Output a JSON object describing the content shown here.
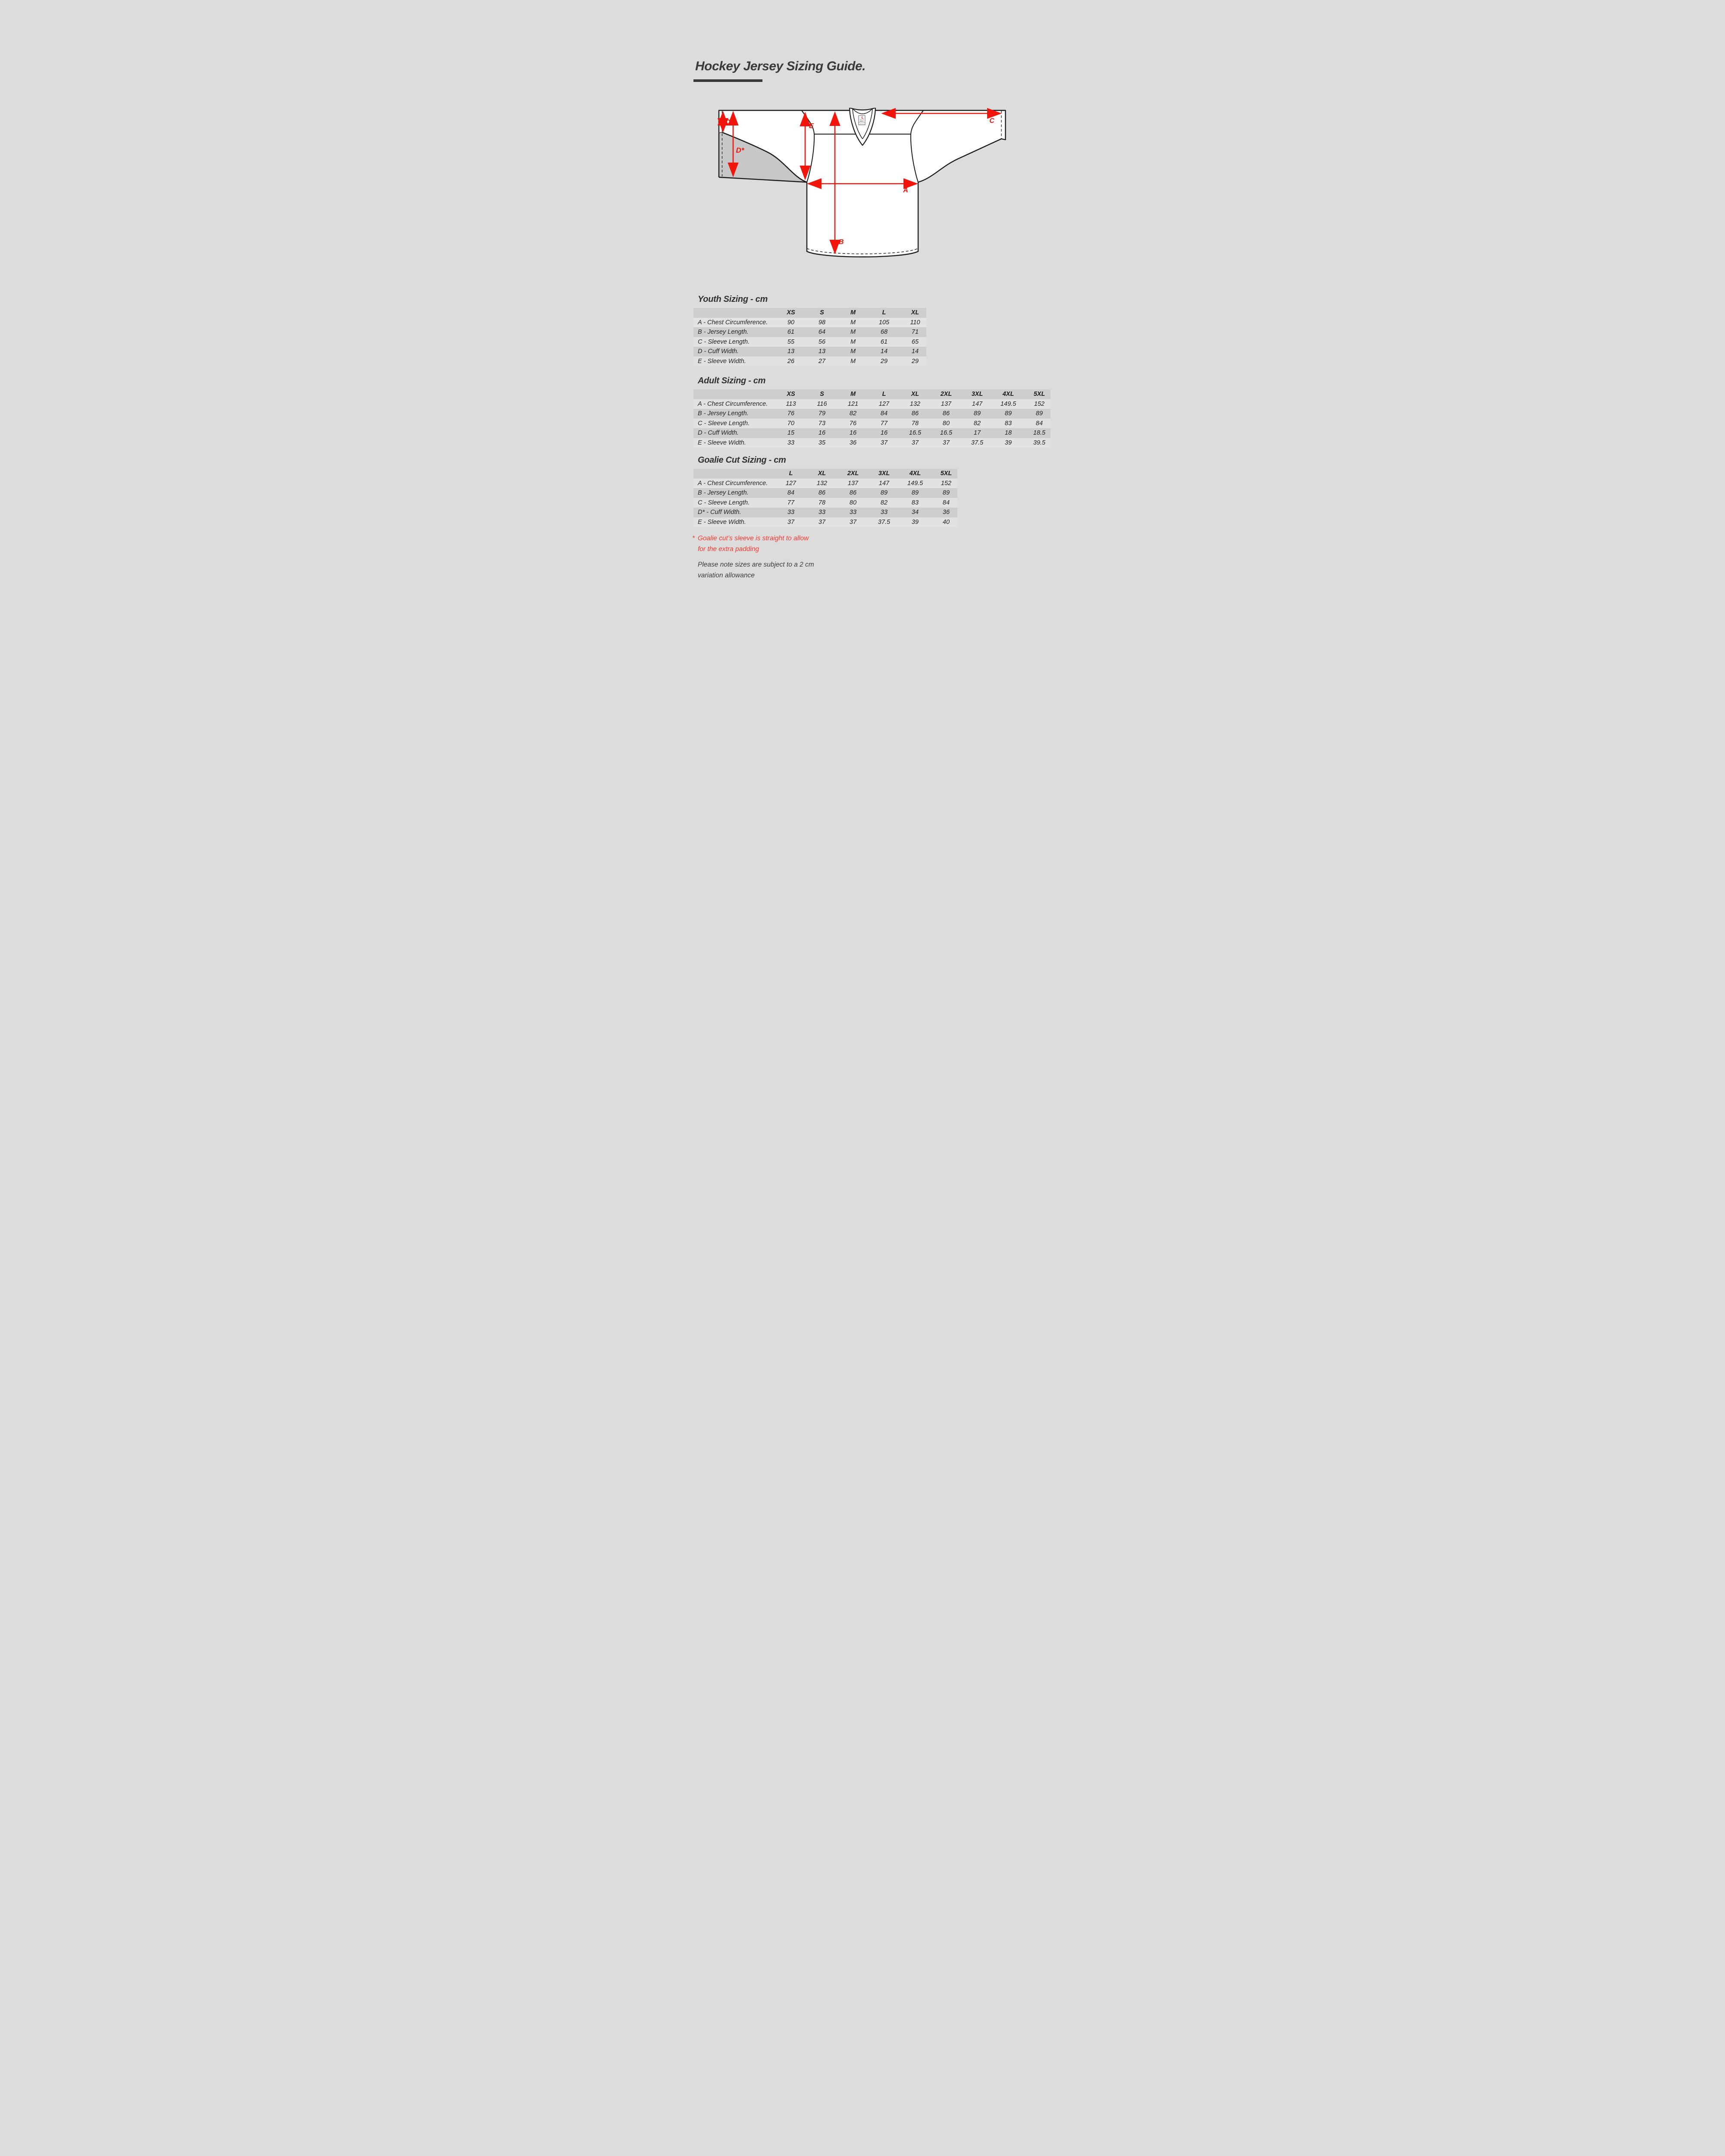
{
  "page": {
    "title": "Hockey Jersey Sizing Guide."
  },
  "diagram": {
    "labels": {
      "A": "A",
      "B": "B",
      "C": "C",
      "D": "D",
      "D_star": "D*",
      "E": "E"
    },
    "tag": {
      "brand": "SILA",
      "size": "ADULT L",
      "material": "100% POLYESTER",
      "origin": "Made in China"
    }
  },
  "tables": [
    {
      "id": "youth",
      "title": "Youth Sizing - cm",
      "columns": [
        "XS",
        "S",
        "M",
        "L",
        "XL"
      ],
      "rows": [
        {
          "label": "A - Chest Circumference.",
          "values": [
            "90",
            "98",
            "M",
            "105",
            "110"
          ]
        },
        {
          "label": "B - Jersey Length.",
          "values": [
            "61",
            "64",
            "M",
            "68",
            "71"
          ]
        },
        {
          "label": "C - Sleeve Length.",
          "values": [
            "55",
            "56",
            "M",
            "61",
            "65"
          ]
        },
        {
          "label": "D - Cuff Width.",
          "values": [
            "13",
            "13",
            "M",
            "14",
            "14"
          ]
        },
        {
          "label": "E - Sleeve Width.",
          "values": [
            "26",
            "27",
            "M",
            "29",
            "29"
          ]
        }
      ]
    },
    {
      "id": "adult",
      "title": "Adult Sizing - cm",
      "columns": [
        "XS",
        "S",
        "M",
        "L",
        "XL",
        "2XL",
        "3XL",
        "4XL",
        "5XL"
      ],
      "rows": [
        {
          "label": "A - Chest Circumference.",
          "values": [
            "113",
            "116",
            "121",
            "127",
            "132",
            "137",
            "147",
            "149.5",
            "152"
          ]
        },
        {
          "label": "B - Jersey Length.",
          "values": [
            "76",
            "79",
            "82",
            "84",
            "86",
            "86",
            "89",
            "89",
            "89"
          ]
        },
        {
          "label": "C - Sleeve Length.",
          "values": [
            "70",
            "73",
            "76",
            "77",
            "78",
            "80",
            "82",
            "83",
            "84"
          ]
        },
        {
          "label": "D - Cuff Width.",
          "values": [
            "15",
            "16",
            "16",
            "16",
            "16.5",
            "16.5",
            "17",
            "18",
            "18.5"
          ]
        },
        {
          "label": "E - Sleeve Width.",
          "values": [
            "33",
            "35",
            "36",
            "37",
            "37",
            "37",
            "37.5",
            "39",
            "39.5"
          ]
        }
      ]
    },
    {
      "id": "goalie",
      "title": "Goalie Cut Sizing - cm",
      "columns": [
        "L",
        "XL",
        "2XL",
        "3XL",
        "4XL",
        "5XL"
      ],
      "rows": [
        {
          "label": "A - Chest Circumference.",
          "values": [
            "127",
            "132",
            "137",
            "147",
            "149.5",
            "152"
          ]
        },
        {
          "label": "B - Jersey Length.",
          "values": [
            "84",
            "86",
            "86",
            "89",
            "89",
            "89"
          ]
        },
        {
          "label": "C - Sleeve Length.",
          "values": [
            "77",
            "78",
            "80",
            "82",
            "83",
            "84"
          ]
        },
        {
          "label": "D* - Cuff Width.",
          "values": [
            "33",
            "33",
            "33",
            "33",
            "34",
            "36"
          ]
        },
        {
          "label": "E - Sleeve Width.",
          "values": [
            "37",
            "37",
            "37",
            "37.5",
            "39",
            "40"
          ]
        }
      ]
    }
  ],
  "notes": {
    "goalie": {
      "marker": "*",
      "line1": "Goalie cut’s sleeve is straight to allow",
      "line2": "for the extra padding"
    },
    "variation": {
      "line1": "Please note sizes are subject to a 2 cm",
      "line2": "variation allowance"
    }
  },
  "colors": {
    "background": "#dcdcdc",
    "ink": "#3a3a3a",
    "stripe_dark": "#cecece",
    "stripe_light": "#e2e2e2",
    "accent_red": "#f2150b",
    "note_red": "#fb3a30",
    "goalie_area_gray": "#c7c7c7"
  }
}
